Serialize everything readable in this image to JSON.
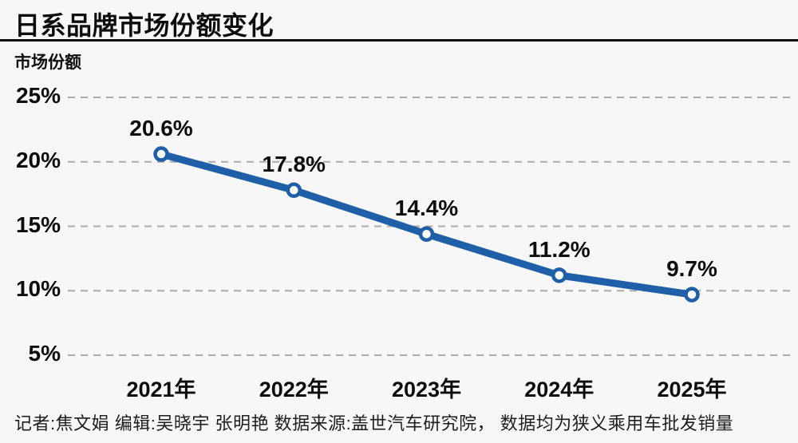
{
  "header": {
    "title": "日系品牌市场份额变化"
  },
  "chart_data": {
    "type": "line",
    "title": "日系品牌市场份额变化",
    "ylabel": "市场份额",
    "xlabel": "",
    "categories": [
      "2021年",
      "2022年",
      "2023年",
      "2024年",
      "2025年"
    ],
    "values": [
      20.6,
      17.8,
      14.4,
      11.2,
      9.7
    ],
    "value_labels": [
      "20.6%",
      "17.8%",
      "14.4%",
      "11.2%",
      "9.7%"
    ],
    "yticks": [
      5,
      10,
      15,
      20,
      25
    ],
    "ytick_labels": [
      "5%",
      "10%",
      "15%",
      "20%",
      "25%"
    ],
    "ylim": [
      5,
      27
    ],
    "grid": "horizontal dashed",
    "legend": "none",
    "colors": {
      "line": "#1f5fa8",
      "marker_fill": "#ffffff",
      "marker_ring": "#1f5fa8",
      "gridline": "#ababab",
      "text": "#0d0d0d",
      "background": "#f7f7f7"
    }
  },
  "footer": {
    "credits": "记者:焦文娟  编辑:吴晓宇 张明艳  数据来源:盖世汽车研究院， 数据均为狭义乘用车批发销量"
  }
}
